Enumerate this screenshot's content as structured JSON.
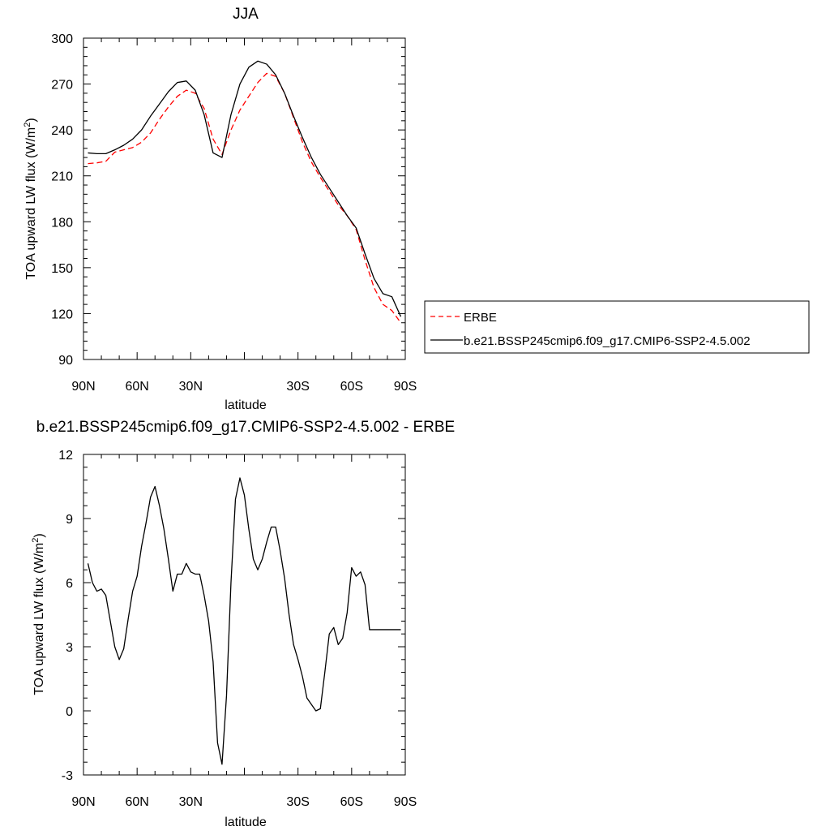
{
  "chart_data": [
    {
      "type": "line",
      "title": "JJA",
      "xlabel": "latitude",
      "ylabel": "TOA upward LW flux (W/m",
      "ylabel_sup": "2",
      "ylabel_close": ")",
      "xlim": [
        90,
        -90
      ],
      "ylim": [
        90,
        300
      ],
      "xticks": [
        90,
        60,
        30,
        0,
        -30,
        -60,
        -90
      ],
      "xtick_labels": [
        "90N",
        "60N",
        "30N",
        "",
        "30S",
        "60S",
        "90S"
      ],
      "yticks": [
        90,
        120,
        150,
        180,
        210,
        240,
        270,
        300
      ],
      "ytick_labels": [
        "90",
        "120",
        "150",
        "180",
        "210",
        "240",
        "270",
        "300"
      ],
      "legend_position": "right",
      "series": [
        {
          "name": "ERBE",
          "color": "#ff0000",
          "dash": true,
          "x": [
            87.5,
            82.5,
            77.5,
            72.5,
            67.5,
            62.5,
            57.5,
            52.5,
            47.5,
            42.5,
            37.5,
            32.5,
            27.5,
            22.5,
            17.5,
            12.5,
            7.5,
            2.5,
            -2.5,
            -7.5,
            -12.5,
            -17.5,
            -22.5,
            -27.5,
            -32.5,
            -37.5,
            -42.5,
            -47.5,
            -52.5,
            -57.5,
            -62.5,
            -67.5,
            -72.5,
            -77.5,
            -82.5,
            -87.5
          ],
          "y": [
            218,
            218.5,
            219.5,
            225.5,
            227,
            228.5,
            232,
            238,
            247,
            255,
            262,
            266,
            264,
            254,
            234,
            224,
            240,
            253,
            262,
            271,
            277,
            275,
            264,
            248,
            232,
            219,
            209,
            200,
            191,
            184,
            175,
            155,
            137,
            126,
            122,
            114
          ],
          "values": [
            218,
            218.5,
            219.5,
            225.5,
            227,
            228.5,
            232,
            238,
            247,
            255,
            262,
            266,
            264,
            254,
            234,
            224,
            240,
            253,
            262,
            271,
            277,
            275,
            264,
            248,
            232,
            219,
            209,
            200,
            191,
            184,
            175,
            155,
            137,
            126,
            122,
            114
          ]
        },
        {
          "name": "b.e21.BSSP245cmip6.f09_g17.CMIP6-SSP2-4.5.002",
          "color": "#000000",
          "dash": false,
          "x": [
            87.5,
            82.5,
            77.5,
            72.5,
            67.5,
            62.5,
            57.5,
            52.5,
            47.5,
            42.5,
            37.5,
            32.5,
            27.5,
            22.5,
            17.5,
            12.5,
            7.5,
            2.5,
            -2.5,
            -7.5,
            -12.5,
            -17.5,
            -22.5,
            -27.5,
            -32.5,
            -37.5,
            -42.5,
            -47.5,
            -52.5,
            -57.5,
            -62.5,
            -67.5,
            -72.5,
            -77.5,
            -82.5,
            -87.5
          ],
          "y": [
            225,
            224.5,
            224.5,
            227,
            230,
            234,
            240,
            249,
            257,
            265,
            271,
            272,
            266,
            250,
            225,
            222,
            250,
            270,
            281,
            285,
            283,
            276,
            264,
            249,
            235,
            222,
            211,
            202,
            193,
            184,
            176,
            159,
            143,
            133,
            131,
            118
          ],
          "values": [
            225,
            224.5,
            224.5,
            227,
            230,
            234,
            240,
            249,
            257,
            265,
            271,
            272,
            266,
            250,
            225,
            222,
            250,
            270,
            281,
            285,
            283,
            276,
            264,
            249,
            235,
            222,
            211,
            202,
            193,
            184,
            176,
            159,
            143,
            133,
            131,
            118
          ]
        }
      ]
    },
    {
      "type": "line",
      "title": "b.e21.BSSP245cmip6.f09_g17.CMIP6-SSP2-4.5.002 - ERBE",
      "xlabel": "latitude",
      "ylabel": "TOA upward LW flux (W/m",
      "ylabel_sup": "2",
      "ylabel_close": ")",
      "xlim": [
        90,
        -90
      ],
      "ylim": [
        -3,
        12
      ],
      "xticks": [
        90,
        60,
        30,
        0,
        -30,
        -60,
        -90
      ],
      "xtick_labels": [
        "90N",
        "60N",
        "30N",
        "",
        "30S",
        "60S",
        "90S"
      ],
      "yticks": [
        -3,
        0,
        3,
        6,
        9,
        12
      ],
      "ytick_labels": [
        "-3",
        "0",
        "3",
        "6",
        "9",
        "12"
      ],
      "series": [
        {
          "color": "#000000",
          "dash": false,
          "x": [
            87.5,
            85,
            82.5,
            80,
            77.5,
            75,
            72.5,
            70,
            67.5,
            65,
            62.5,
            60,
            57.5,
            55,
            52.5,
            50,
            47.5,
            45,
            42.5,
            40,
            37.5,
            35,
            32.5,
            30,
            27.5,
            25,
            22.5,
            20,
            17.5,
            15,
            12.5,
            10,
            7.5,
            5,
            2.5,
            0,
            -2.5,
            -5,
            -7.5,
            -10,
            -12.5,
            -15,
            -17.5,
            -20,
            -22.5,
            -25,
            -27.5,
            -30,
            -32.5,
            -35,
            -37.5,
            -40,
            -42.5,
            -45,
            -47.5,
            -50,
            -52.5,
            -55,
            -57.5,
            -60,
            -62.5,
            -65,
            -67.5,
            -70,
            -72.5,
            -75,
            -77.5,
            -80,
            -82.5,
            -85,
            -87.5
          ],
          "y": [
            6.9,
            6.0,
            5.6,
            5.7,
            5.4,
            4.2,
            3.0,
            2.4,
            2.9,
            4.3,
            5.6,
            6.3,
            7.7,
            8.8,
            10.0,
            10.5,
            9.6,
            8.5,
            7.1,
            5.6,
            6.4,
            6.4,
            6.9,
            6.5,
            6.4,
            6.4,
            5.4,
            4.2,
            2.3,
            -1.5,
            -2.5,
            0.7,
            6.0,
            9.9,
            10.9,
            10.1,
            8.5,
            7.1,
            6.6,
            7.1,
            7.9,
            8.6,
            8.6,
            7.5,
            6.2,
            4.5,
            3.1,
            2.4,
            1.6,
            0.6,
            0.3,
            0.0,
            0.1,
            1.8,
            3.6,
            3.9,
            3.1,
            3.4,
            4.6,
            6.7,
            6.3,
            6.5,
            5.9,
            3.8,
            3.8,
            3.8,
            3.8,
            3.8,
            3.8,
            3.8,
            3.8
          ],
          "values": [
            6.9,
            6.0,
            5.6,
            5.7,
            5.4,
            4.2,
            3.0,
            2.4,
            2.9,
            4.3,
            5.6,
            6.3,
            7.7,
            8.8,
            10.0,
            10.5,
            9.6,
            8.5,
            7.1,
            5.6,
            6.4,
            6.4,
            6.9,
            6.5,
            6.4,
            6.4,
            5.4,
            4.2,
            2.3,
            -1.5,
            -2.5,
            0.7,
            6.0,
            9.9,
            10.9,
            10.1,
            8.5,
            7.1,
            6.6,
            7.1,
            7.9,
            8.6,
            8.6,
            7.5,
            6.2,
            4.5,
            3.1,
            2.4,
            1.6,
            0.6,
            0.3,
            0.0,
            0.1,
            1.8,
            3.6,
            3.9,
            3.1,
            3.4,
            4.6,
            6.7,
            6.3,
            6.5,
            5.9,
            3.8,
            3.8,
            3.8,
            3.8,
            3.8,
            3.8,
            3.8,
            3.8
          ]
        }
      ]
    }
  ]
}
